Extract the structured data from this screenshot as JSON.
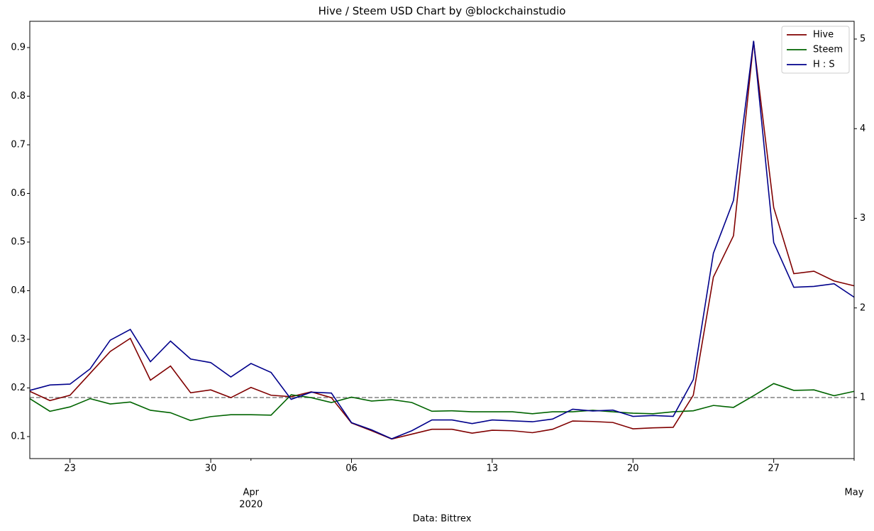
{
  "chart_data": {
    "type": "line",
    "title": "Hive / Steem USD Chart by @blockchainstudio",
    "xlabel": "Data: Bittrex",
    "x": [
      "2020-03-21",
      "2020-03-22",
      "2020-03-23",
      "2020-03-24",
      "2020-03-25",
      "2020-03-26",
      "2020-03-27",
      "2020-03-28",
      "2020-03-29",
      "2020-03-30",
      "2020-03-31",
      "2020-04-01",
      "2020-04-02",
      "2020-04-03",
      "2020-04-04",
      "2020-04-05",
      "2020-04-06",
      "2020-04-07",
      "2020-04-08",
      "2020-04-09",
      "2020-04-10",
      "2020-04-11",
      "2020-04-12",
      "2020-04-13",
      "2020-04-14",
      "2020-04-15",
      "2020-04-16",
      "2020-04-17",
      "2020-04-18",
      "2020-04-19",
      "2020-04-20",
      "2020-04-21",
      "2020-04-22",
      "2020-04-23",
      "2020-04-24",
      "2020-04-25",
      "2020-04-26",
      "2020-04-27",
      "2020-04-28",
      "2020-04-29",
      "2020-04-30",
      "2020-05-01"
    ],
    "xlim": [
      "2020-03-21",
      "2020-05-01"
    ],
    "xticks": [
      {
        "value": "2020-03-23",
        "label": "23"
      },
      {
        "value": "2020-03-30",
        "label": "30"
      },
      {
        "value": "2020-04-06",
        "label": "06"
      },
      {
        "value": "2020-04-13",
        "label": "13"
      },
      {
        "value": "2020-04-20",
        "label": "20"
      },
      {
        "value": "2020-04-27",
        "label": "27"
      }
    ],
    "month_ticks": [
      {
        "value": "2020-04-01",
        "label": "Apr"
      },
      {
        "value": "2020-05-01",
        "label": "May"
      }
    ],
    "year_label": "2020",
    "ylim": [
      0.0547,
      0.954
    ],
    "yticks": [
      0.1,
      0.2,
      0.3,
      0.4,
      0.5,
      0.6,
      0.7,
      0.8,
      0.9
    ],
    "y2lim": [
      0.319,
      5.198
    ],
    "y2ticks": [
      1,
      2,
      3,
      4,
      5
    ],
    "hline": {
      "value": 1,
      "axis": "y2",
      "color": "#808080"
    },
    "legend": "upper right",
    "series": [
      {
        "name": "Hive",
        "color": "#800000",
        "values": [
          0.193,
          0.174,
          0.185,
          0.23,
          0.275,
          0.302,
          0.216,
          0.245,
          0.19,
          0.196,
          0.18,
          0.201,
          0.185,
          0.182,
          0.192,
          0.18,
          0.128,
          0.112,
          0.095,
          0.105,
          0.115,
          0.115,
          0.107,
          0.113,
          0.112,
          0.108,
          0.115,
          0.132,
          0.131,
          0.129,
          0.116,
          0.118,
          0.119,
          0.185,
          0.428,
          0.513,
          0.912,
          0.571,
          0.435,
          0.44,
          0.42,
          0.41
        ]
      },
      {
        "name": "Steem",
        "color": "#006400",
        "values": [
          0.178,
          0.152,
          0.161,
          0.178,
          0.167,
          0.171,
          0.154,
          0.149,
          0.133,
          0.141,
          0.145,
          0.145,
          0.144,
          0.186,
          0.18,
          0.17,
          0.181,
          0.173,
          0.176,
          0.17,
          0.152,
          0.153,
          0.151,
          0.151,
          0.151,
          0.147,
          0.151,
          0.151,
          0.154,
          0.151,
          0.148,
          0.147,
          0.151,
          0.153,
          0.164,
          0.16,
          0.184,
          0.209,
          0.195,
          0.196,
          0.184,
          0.193
        ]
      },
      {
        "name": "H : S",
        "color": "#00008b",
        "axis": "y2",
        "values": [
          1.08,
          1.14,
          1.15,
          1.32,
          1.64,
          1.76,
          1.4,
          1.63,
          1.43,
          1.39,
          1.23,
          1.38,
          1.28,
          0.98,
          1.06,
          1.05,
          0.72,
          0.64,
          0.54,
          0.63,
          0.75,
          0.75,
          0.71,
          0.75,
          0.74,
          0.73,
          0.76,
          0.87,
          0.85,
          0.86,
          0.79,
          0.8,
          0.79,
          1.2,
          2.61,
          3.2,
          4.98,
          2.73,
          2.23,
          2.24,
          2.27,
          2.12
        ]
      }
    ]
  }
}
